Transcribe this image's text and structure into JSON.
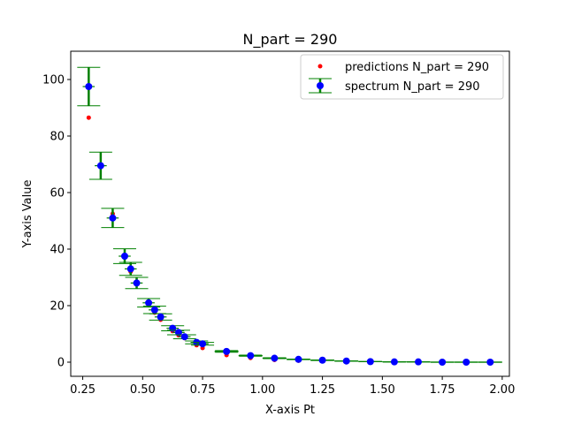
{
  "chart_data": {
    "type": "scatter",
    "title": "N_part = 290",
    "xlabel": "X-axis Pt",
    "ylabel": "Y-axis Value",
    "xlim": [
      0.2,
      2.03
    ],
    "ylim": [
      -5,
      110
    ],
    "x_ticks": [
      0.25,
      0.5,
      0.75,
      1.0,
      1.25,
      1.5,
      1.75,
      2.0
    ],
    "x_tick_labels": [
      "0.25",
      "0.50",
      "0.75",
      "1.00",
      "1.25",
      "1.50",
      "1.75",
      "2.00"
    ],
    "y_ticks": [
      0,
      20,
      40,
      60,
      80,
      100
    ],
    "y_tick_labels": [
      "0",
      "20",
      "40",
      "60",
      "80",
      "100"
    ],
    "legend_position": "top-right",
    "grid": false,
    "series": [
      {
        "name": "predictions N_part = 290",
        "kind": "scatter",
        "color": "#ff0000",
        "points": [
          {
            "x": 0.275,
            "y": 86.5
          },
          {
            "x": 0.325,
            "y": 69.0
          },
          {
            "x": 0.375,
            "y": 52.5
          },
          {
            "x": 0.425,
            "y": 37.0
          },
          {
            "x": 0.45,
            "y": 32.0
          },
          {
            "x": 0.475,
            "y": 27.5
          },
          {
            "x": 0.525,
            "y": 20.5
          },
          {
            "x": 0.55,
            "y": 17.5
          },
          {
            "x": 0.575,
            "y": 15.0
          },
          {
            "x": 0.625,
            "y": 11.0
          },
          {
            "x": 0.65,
            "y": 9.5
          },
          {
            "x": 0.675,
            "y": 8.5
          },
          {
            "x": 0.725,
            "y": 6.0
          },
          {
            "x": 0.75,
            "y": 5.0
          },
          {
            "x": 0.85,
            "y": 2.5
          },
          {
            "x": 0.95,
            "y": 1.5
          },
          {
            "x": 1.05,
            "y": 0.8
          },
          {
            "x": 1.15,
            "y": 0.5
          },
          {
            "x": 1.25,
            "y": 0.4
          },
          {
            "x": 1.35,
            "y": 0.2
          },
          {
            "x": 1.45,
            "y": 0.1
          },
          {
            "x": 1.55,
            "y": 0.0
          },
          {
            "x": 1.65,
            "y": 0.0
          },
          {
            "x": 1.75,
            "y": 0.0
          },
          {
            "x": 1.85,
            "y": 0.0
          },
          {
            "x": 1.95,
            "y": 0.0
          }
        ]
      },
      {
        "name": "spectrum N_part = 290",
        "kind": "errorbar",
        "color": "#0000ff",
        "errcolor": "#008000",
        "points": [
          {
            "x": 0.275,
            "y": 97.5,
            "yerr": 6.8,
            "xerr": 0.025
          },
          {
            "x": 0.325,
            "y": 69.5,
            "yerr": 4.8,
            "xerr": 0.025
          },
          {
            "x": 0.375,
            "y": 51.0,
            "yerr": 3.4,
            "xerr": 0.025
          },
          {
            "x": 0.425,
            "y": 37.5,
            "yerr": 2.6,
            "xerr": 0.025
          },
          {
            "x": 0.45,
            "y": 33.0,
            "yerr": 2.3,
            "xerr": 0.025
          },
          {
            "x": 0.475,
            "y": 28.0,
            "yerr": 2.0,
            "xerr": 0.025
          },
          {
            "x": 0.525,
            "y": 21.0,
            "yerr": 1.5,
            "xerr": 0.025
          },
          {
            "x": 0.55,
            "y": 18.5,
            "yerr": 1.3,
            "xerr": 0.025
          },
          {
            "x": 0.575,
            "y": 16.0,
            "yerr": 1.1,
            "xerr": 0.025
          },
          {
            "x": 0.625,
            "y": 12.0,
            "yerr": 0.9,
            "xerr": 0.025
          },
          {
            "x": 0.65,
            "y": 10.5,
            "yerr": 0.8,
            "xerr": 0.025
          },
          {
            "x": 0.675,
            "y": 9.0,
            "yerr": 0.7,
            "xerr": 0.025
          },
          {
            "x": 0.725,
            "y": 7.0,
            "yerr": 0.5,
            "xerr": 0.025
          },
          {
            "x": 0.75,
            "y": 6.5,
            "yerr": 0.5,
            "xerr": 0.025
          },
          {
            "x": 0.85,
            "y": 3.8,
            "yerr": 0.3,
            "xerr": 0.05
          },
          {
            "x": 0.95,
            "y": 2.3,
            "yerr": 0.2,
            "xerr": 0.05
          },
          {
            "x": 1.05,
            "y": 1.4,
            "yerr": 0.15,
            "xerr": 0.05
          },
          {
            "x": 1.15,
            "y": 1.0,
            "yerr": 0.1,
            "xerr": 0.05
          },
          {
            "x": 1.25,
            "y": 0.7,
            "yerr": 0.1,
            "xerr": 0.05
          },
          {
            "x": 1.35,
            "y": 0.4,
            "yerr": 0.05,
            "xerr": 0.05
          },
          {
            "x": 1.45,
            "y": 0.2,
            "yerr": 0.05,
            "xerr": 0.05
          },
          {
            "x": 1.55,
            "y": 0.1,
            "yerr": 0.05,
            "xerr": 0.05
          },
          {
            "x": 1.65,
            "y": 0.1,
            "yerr": 0.05,
            "xerr": 0.05
          },
          {
            "x": 1.75,
            "y": 0.0,
            "yerr": 0.05,
            "xerr": 0.05
          },
          {
            "x": 1.85,
            "y": 0.0,
            "yerr": 0.05,
            "xerr": 0.05
          },
          {
            "x": 1.95,
            "y": 0.0,
            "yerr": 0.05,
            "xerr": 0.05
          }
        ]
      }
    ]
  }
}
